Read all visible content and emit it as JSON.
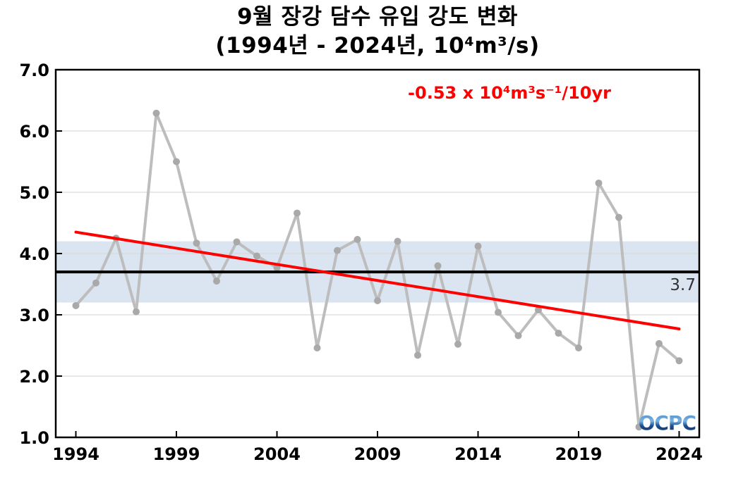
{
  "chart_data": {
    "type": "line",
    "title": "9월 장강 담수 유입 강도 변화",
    "subtitle": "(1994년 - 2024년, 10⁴m³/s)",
    "xlabel": "",
    "ylabel": "",
    "xlim": [
      1993,
      2025
    ],
    "ylim": [
      1.0,
      7.0
    ],
    "x": [
      1994,
      1995,
      1996,
      1997,
      1998,
      1999,
      2000,
      2001,
      2002,
      2003,
      2004,
      2005,
      2006,
      2007,
      2008,
      2009,
      2010,
      2011,
      2012,
      2013,
      2014,
      2015,
      2016,
      2017,
      2018,
      2019,
      2020,
      2021,
      2022,
      2023,
      2024
    ],
    "values": [
      3.15,
      3.52,
      4.25,
      3.05,
      6.29,
      5.5,
      4.17,
      3.55,
      4.19,
      3.96,
      3.77,
      4.66,
      2.46,
      4.05,
      4.23,
      3.23,
      4.2,
      2.34,
      3.8,
      2.52,
      4.12,
      3.04,
      2.66,
      3.08,
      2.7,
      2.46,
      5.15,
      4.59,
      1.17,
      2.53,
      2.25
    ],
    "xticks": [
      1994,
      1999,
      2004,
      2009,
      2014,
      2019,
      2024
    ],
    "yticks": [
      "1.0",
      "2.0",
      "3.0",
      "4.0",
      "5.0",
      "6.0",
      "7.0"
    ],
    "grid_values": [
      2,
      3,
      4,
      5,
      6
    ],
    "grid": "horizontal-only",
    "mean_line": {
      "value": 3.7,
      "label": "3.7"
    },
    "band": {
      "low": 3.2,
      "high": 4.2
    },
    "trend": {
      "x_start": 1994,
      "y_start": 4.35,
      "x_end": 2024,
      "y_end": 2.77,
      "label": "-0.53 x 10⁴m³s⁻¹/10yr"
    },
    "logo": "OCPC",
    "colors": {
      "series_line": "#bdbdbd",
      "series_marker": "#a9a9a9",
      "trend_line": "#ff0000",
      "annotation_text": "#ff0000",
      "mean_line": "#000000",
      "band_fill": "#dbe5f1",
      "gridline": "#d9d9d9",
      "axis": "#000000"
    }
  }
}
